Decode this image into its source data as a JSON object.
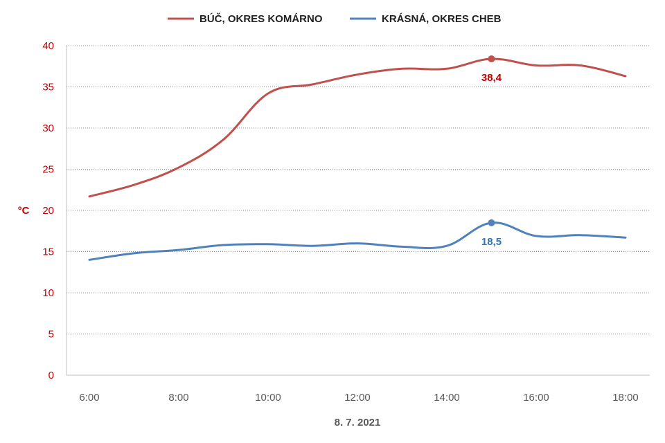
{
  "chart_data": {
    "type": "line",
    "xlabel": "8. 7. 2021",
    "ylabel": "°C",
    "ylim": [
      0,
      40
    ],
    "yticks": [
      0,
      5,
      10,
      15,
      20,
      25,
      30,
      35,
      40
    ],
    "x": [
      "6:00",
      "7:00",
      "8:00",
      "9:00",
      "10:00",
      "11:00",
      "12:00",
      "13:00",
      "14:00",
      "15:00",
      "16:00",
      "17:00",
      "18:00"
    ],
    "x_tick_labels": [
      "6:00",
      "8:00",
      "10:00",
      "12:00",
      "14:00",
      "16:00",
      "18:00"
    ],
    "grid": "horizontal dotted",
    "legend_position": "top",
    "smooth": true,
    "series": [
      {
        "name": "BÚČ, OKRES KOMÁRNO",
        "color": "#c0504d",
        "values": [
          21.7,
          23.1,
          25.2,
          28.6,
          34.2,
          35.3,
          36.5,
          37.2,
          37.2,
          38.4,
          37.6,
          37.6,
          36.3
        ],
        "max_point_index": 9,
        "max_label": "38,4",
        "label_color": "#c00000"
      },
      {
        "name": "KRÁSNÁ, OKRES CHEB",
        "color": "#4f81bd",
        "values": [
          14.0,
          14.8,
          15.2,
          15.8,
          15.9,
          15.7,
          16.0,
          15.6,
          15.7,
          18.5,
          16.9,
          17.0,
          16.7
        ],
        "max_point_index": 9,
        "max_label": "18,5",
        "label_color": "#2e75b6"
      }
    ]
  }
}
